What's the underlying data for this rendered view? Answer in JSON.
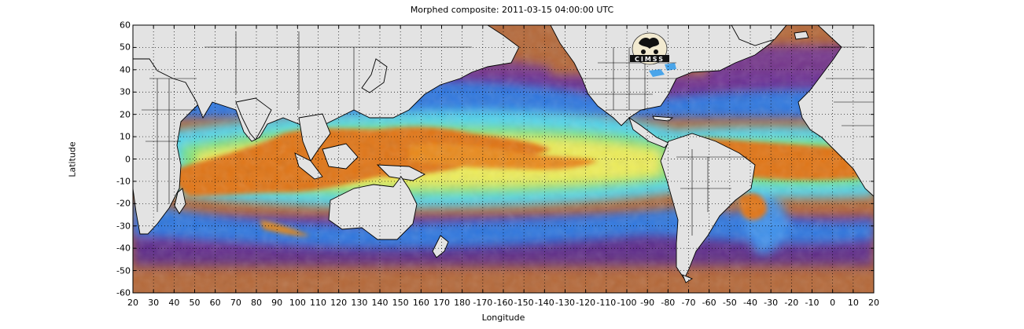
{
  "title": "Morphed composite: 2011-03-15 04:00:00 UTC",
  "xlabel": "Longitude",
  "ylabel": "Latitude",
  "x_ticks": [
    "20",
    "30",
    "40",
    "50",
    "60",
    "70",
    "80",
    "90",
    "100",
    "110",
    "120",
    "130",
    "140",
    "150",
    "160",
    "170",
    "180",
    "-170",
    "-160",
    "-150",
    "-140",
    "-130",
    "-120",
    "-110",
    "-100",
    "-90",
    "-80",
    "-70",
    "-60",
    "-50",
    "-40",
    "-30",
    "-20",
    "-10",
    "0",
    "10",
    "20"
  ],
  "y_ticks": [
    "60",
    "50",
    "40",
    "30",
    "20",
    "10",
    "0",
    "-10",
    "-20",
    "-30",
    "-40",
    "-50",
    "-60"
  ],
  "logo_text": "CIMSS",
  "colors": {
    "land": "#e3e3e3",
    "dry_brown": "#b5693a",
    "dry_purple": "#6a2f9a",
    "mid_blue": "#2a7fe8",
    "cyan": "#4fd3f0",
    "green": "#7ae07a",
    "yellow": "#ecec5a",
    "wet_orange": "#e07417"
  },
  "map": {
    "lon_range": [
      20,
      380
    ],
    "lat_range": [
      -60,
      60
    ],
    "grid": "dotted"
  }
}
